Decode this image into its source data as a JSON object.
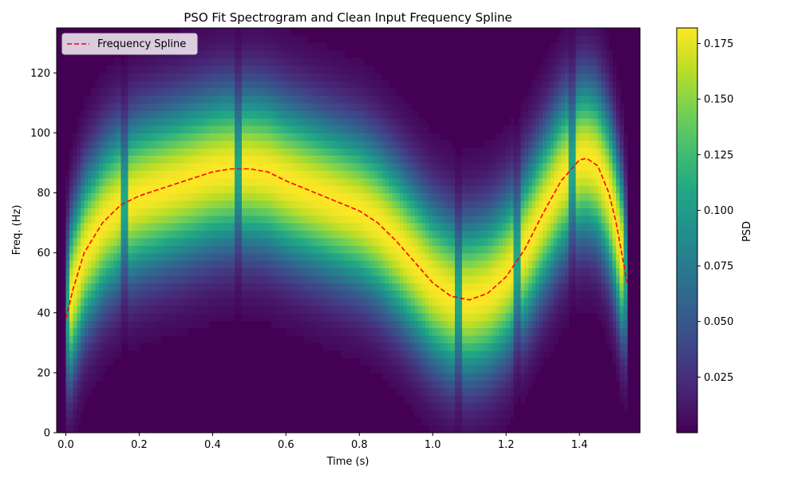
{
  "chart_data": {
    "type": "heatmap",
    "title": "PSO Fit Spectrogram and Clean Input Frequency Spline",
    "xlabel": "Time (s)",
    "ylabel": "Freq. (Hz)",
    "xlim": [
      -0.025,
      1.565
    ],
    "ylim": [
      0,
      135
    ],
    "x_ticks": [
      "0.0",
      "0.2",
      "0.4",
      "0.6",
      "0.8",
      "1.0",
      "1.2",
      "1.4"
    ],
    "y_ticks": [
      "0",
      "20",
      "40",
      "60",
      "80",
      "100",
      "120"
    ],
    "grid": false,
    "colormap": "viridis",
    "colorbar": {
      "label": "PSD",
      "range": [
        0.0,
        0.182
      ],
      "ticks": [
        "0.025",
        "0.050",
        "0.075",
        "0.100",
        "0.125",
        "0.150",
        "0.175"
      ]
    },
    "legend": {
      "placement": "top-left",
      "entries": [
        "Frequency Spline"
      ]
    },
    "series": [
      {
        "name": "Frequency Spline",
        "style": "dashed",
        "color": "#ff0000",
        "x": [
          0.0,
          0.02,
          0.05,
          0.1,
          0.15,
          0.2,
          0.3,
          0.4,
          0.45,
          0.5,
          0.55,
          0.6,
          0.7,
          0.8,
          0.85,
          0.9,
          0.95,
          1.0,
          1.05,
          1.1,
          1.15,
          1.2,
          1.25,
          1.3,
          1.35,
          1.4,
          1.42,
          1.45,
          1.48,
          1.5,
          1.53
        ],
        "y": [
          38,
          48,
          60,
          70,
          76,
          79,
          83,
          87,
          88,
          88,
          87,
          84,
          79,
          74,
          70,
          64,
          57,
          50,
          45.5,
          44.3,
          46.5,
          52,
          61,
          73,
          84,
          91,
          91.5,
          89,
          80,
          70,
          50
        ]
      }
    ],
    "spectrogram": {
      "description_values": "peak PSD follows the spline frequency band with broad harmonic spread",
      "peak_psd": 0.182,
      "dark_vertical_columns_at": [
        0.0,
        0.16,
        0.47,
        1.07,
        1.23,
        1.38,
        1.53
      ]
    }
  }
}
